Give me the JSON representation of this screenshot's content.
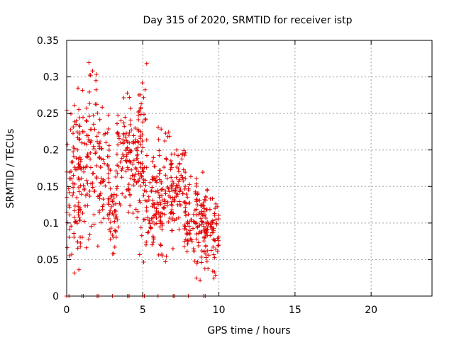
{
  "chart_data": {
    "type": "scatter",
    "title": "Day 315 of 2020, SRMTID for receiver istp",
    "xlabel": "GPS time / hours",
    "ylabel": "SRMTID / TECUs",
    "xlim": [
      0,
      24
    ],
    "ylim": [
      0,
      0.35
    ],
    "xticks": [
      0,
      5,
      10,
      15,
      20
    ],
    "yticks": [
      0,
      0.05,
      0.1,
      0.15,
      0.2,
      0.25,
      0.3,
      0.35
    ],
    "xtick_labels": [
      "0",
      "5",
      "10",
      "15",
      "20"
    ],
    "ytick_labels": [
      "0",
      "0.05",
      "0.1",
      "0.15",
      "0.2",
      "0.25",
      "0.3",
      "0.35"
    ],
    "grid": true,
    "marker": "+",
    "marker_color": "#e00000",
    "series": [
      {
        "clusters": [
          {
            "x": [
              0.0,
              0.9
            ],
            "y": [
              0.02,
              0.3
            ]
          },
          {
            "x": [
              0.4,
              1.4
            ],
            "y": [
              0.05,
              0.31
            ]
          },
          {
            "x": [
              1.3,
              2.2
            ],
            "y": [
              0.06,
              0.34
            ]
          },
          {
            "x": [
              2.1,
              2.8
            ],
            "y": [
              0.09,
              0.27
            ]
          },
          {
            "x": [
              2.7,
              3.4
            ],
            "y": [
              0.05,
              0.19
            ]
          },
          {
            "x": [
              3.3,
              4.2
            ],
            "y": [
              0.1,
              0.29
            ]
          },
          {
            "x": [
              4.1,
              5.0
            ],
            "y": [
              0.08,
              0.31
            ]
          },
          {
            "x": [
              4.6,
              5.3
            ],
            "y": [
              0.04,
              0.34
            ]
          },
          {
            "x": [
              5.2,
              6.3
            ],
            "y": [
              0.05,
              0.2
            ]
          },
          {
            "x": [
              6.0,
              7.0
            ],
            "y": [
              0.04,
              0.25
            ]
          },
          {
            "x": [
              6.8,
              7.8
            ],
            "y": [
              0.08,
              0.22
            ]
          },
          {
            "x": [
              7.7,
              8.6
            ],
            "y": [
              0.03,
              0.17
            ]
          },
          {
            "x": [
              8.5,
              9.3
            ],
            "y": [
              0.02,
              0.18
            ]
          },
          {
            "x": [
              9.0,
              10.0
            ],
            "y": [
              0.02,
              0.15
            ]
          }
        ],
        "zeros_x": [
          0,
          0.15,
          1.0,
          1.1,
          2.0,
          2.1,
          3.0,
          4.0,
          4.1,
          5.0,
          5.1,
          6.0,
          7.0,
          7.1,
          8.0,
          9.0,
          9.1
        ]
      }
    ]
  }
}
